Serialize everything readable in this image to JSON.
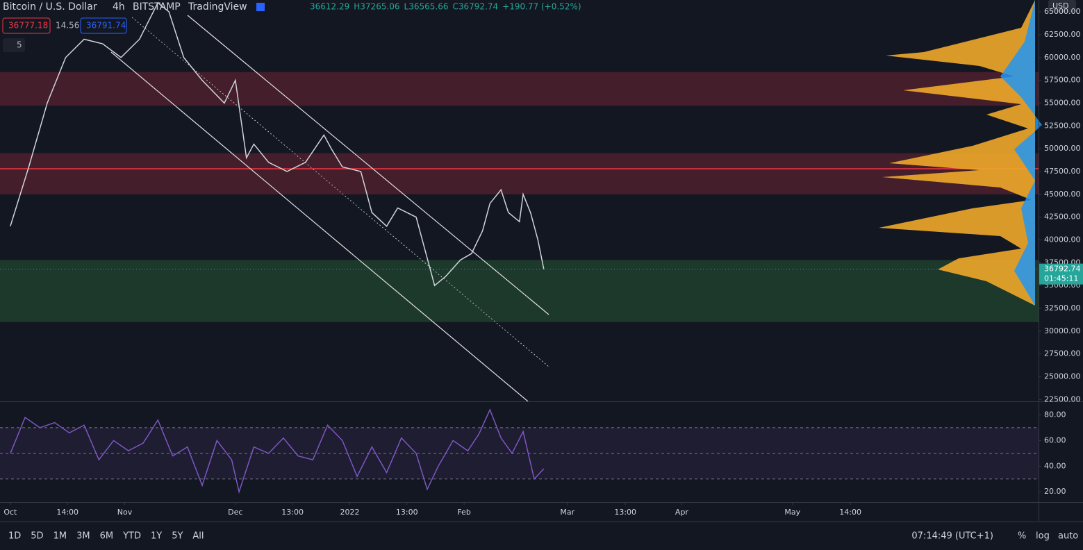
{
  "header": {
    "symbol": "Bitcoin / U.S. Dollar",
    "interval": "4h",
    "exchange": "BITSTAMP",
    "source": "TradingView",
    "ohlc": [
      "36612.29",
      "H37265.06",
      "L36565.66",
      "C36792.74",
      "+190.77 (+0.52%)"
    ],
    "bid": "36777.18",
    "spread": "14.56",
    "ask": "36791.74",
    "indicators_count": "5",
    "currency": "USD"
  },
  "chart_data": {
    "type": "line",
    "x_unit": "days since Oct 1",
    "xlim": [
      -2.8,
      278.7
    ],
    "ylim": [
      22300,
      66300
    ],
    "xticks": [
      {
        "value": 0,
        "label": "Oct"
      },
      {
        "value": 15.5,
        "label": "14:00"
      },
      {
        "value": 31,
        "label": "Nov"
      },
      {
        "value": 61,
        "label": "Dec"
      },
      {
        "value": 76.5,
        "label": "13:00"
      },
      {
        "value": 92,
        "label": "2022"
      },
      {
        "value": 107.5,
        "label": "13:00"
      },
      {
        "value": 123,
        "label": "Feb"
      },
      {
        "value": 151,
        "label": "Mar"
      },
      {
        "value": 166.7,
        "label": "13:00"
      },
      {
        "value": 182,
        "label": "Apr"
      },
      {
        "value": 212,
        "label": "May"
      },
      {
        "value": 227.7,
        "label": "14:00"
      }
    ],
    "yticks": [
      {
        "value": 65000,
        "label": "65000.00"
      },
      {
        "value": 62500,
        "label": "62500.00"
      },
      {
        "value": 60000,
        "label": "60000.00"
      },
      {
        "value": 57500,
        "label": "57500.00"
      },
      {
        "value": 55000,
        "label": "55000.00"
      },
      {
        "value": 52500,
        "label": "52500.00"
      },
      {
        "value": 50000,
        "label": "50000.00"
      },
      {
        "value": 47500,
        "label": "47500.00"
      },
      {
        "value": 45000,
        "label": "45000.00"
      },
      {
        "value": 42500,
        "label": "42500.00"
      },
      {
        "value": 40000,
        "label": "40000.00"
      },
      {
        "value": 37500,
        "label": "37500.00"
      },
      {
        "value": 35000,
        "label": "35000.00"
      },
      {
        "value": 32500,
        "label": "32500.00"
      },
      {
        "value": 30000,
        "label": "30000.00"
      },
      {
        "value": 27500,
        "label": "27500.00"
      },
      {
        "value": 25000,
        "label": "25000.00"
      },
      {
        "value": 22500,
        "label": "22500.00"
      }
    ],
    "series": [
      {
        "name": "BTCUSD",
        "color": "#d1d4dc",
        "x": [
          0,
          5,
          10,
          15,
          20,
          25,
          30,
          35,
          40,
          43,
          47,
          52,
          58,
          61,
          64,
          66,
          70,
          75,
          80,
          85,
          87,
          90,
          95,
          98,
          102,
          105,
          110,
          113,
          115,
          118,
          122,
          125,
          128,
          130,
          133,
          135,
          138,
          139,
          141,
          143,
          144.6
        ],
        "values": [
          41500,
          48000,
          55000,
          60000,
          62000,
          61500,
          60000,
          62000,
          66000,
          65000,
          60000,
          57500,
          55000,
          57500,
          49000,
          50500,
          48500,
          47500,
          48500,
          51500,
          50000,
          48000,
          47500,
          43000,
          41500,
          43500,
          42500,
          38000,
          35000,
          36000,
          37800,
          38500,
          41000,
          44000,
          45500,
          43000,
          42000,
          45000,
          43000,
          40000,
          36792.74
        ]
      }
    ],
    "zones": [
      {
        "from": 54700,
        "to": 58400,
        "color": "#4a1f2c"
      },
      {
        "from": 45000,
        "to": 49500,
        "color": "#4a1f2c"
      },
      {
        "from": 31000,
        "to": 37800,
        "color": "#1f3d2c"
      }
    ],
    "level": {
      "value": 47800,
      "color": "#f23645"
    },
    "last_price": {
      "value": 36792.74,
      "label": "36792.74",
      "countdown": "01:45:11"
    },
    "rsi": {
      "ylim": [
        12,
        90
      ],
      "yticks": [
        {
          "value": 80,
          "label": "80.00"
        },
        {
          "value": 60,
          "label": "60.00"
        },
        {
          "value": 40,
          "label": "40.00"
        },
        {
          "value": 20,
          "label": "20.00"
        }
      ],
      "bands": [
        70,
        50,
        30
      ],
      "color": "#7e57c2",
      "x": [
        0,
        4,
        8,
        12,
        16,
        20,
        24,
        28,
        32,
        36,
        40,
        44,
        48,
        52,
        56,
        60,
        62,
        66,
        70,
        74,
        78,
        82,
        86,
        90,
        94,
        98,
        102,
        106,
        110,
        113,
        116,
        120,
        124,
        127,
        130,
        133,
        136,
        139,
        142,
        144.6
      ],
      "values": [
        50,
        78,
        70,
        74,
        66,
        72,
        45,
        60,
        52,
        58,
        76,
        48,
        55,
        25,
        60,
        45,
        20,
        55,
        50,
        62,
        48,
        45,
        72,
        60,
        32,
        55,
        35,
        62,
        50,
        22,
        40,
        60,
        52,
        65,
        84,
        62,
        50,
        67,
        30,
        38
      ]
    },
    "grid": true
  },
  "toolbar": {
    "ranges": [
      "1D",
      "5D",
      "1M",
      "3M",
      "6M",
      "YTD",
      "1Y",
      "5Y",
      "All"
    ],
    "clock": "07:14:49 (UTC+1)",
    "percent": "%",
    "log": "log",
    "auto": "auto"
  }
}
